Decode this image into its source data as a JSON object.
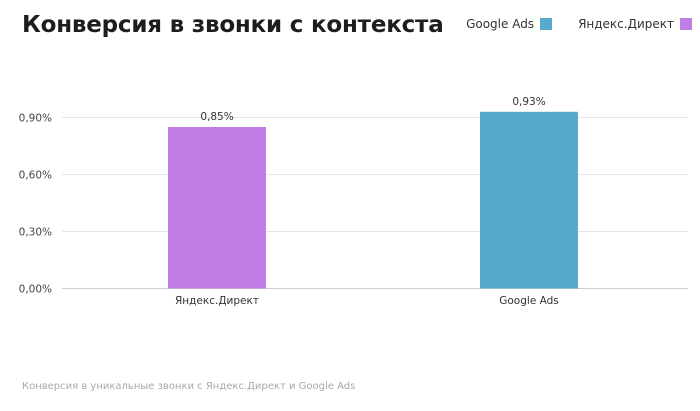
{
  "title": "Конверсия в звонки с контекста",
  "caption": "Конверсия в уникальные звонки с Яндекс.Директ и Google Ads",
  "legend": [
    {
      "label": "Google Ads",
      "color": "#55abc9"
    },
    {
      "label": "Яндекс.Директ",
      "color": "#c17de6"
    }
  ],
  "chart_data": {
    "type": "bar",
    "categories": [
      "Яндекс.Директ",
      "Google Ads"
    ],
    "values": [
      0.85,
      0.93
    ],
    "value_labels": [
      "0,85%",
      "0,93%"
    ],
    "colors": [
      "#c17de6",
      "#55abc9"
    ],
    "yticks": [
      0,
      0.3,
      0.6,
      0.9
    ],
    "ytick_labels": [
      "0,00%",
      "0,30%",
      "0,60%",
      "0,90%"
    ],
    "ylim": [
      0,
      0.9
    ],
    "grid": true,
    "legend_position": "top-right"
  }
}
